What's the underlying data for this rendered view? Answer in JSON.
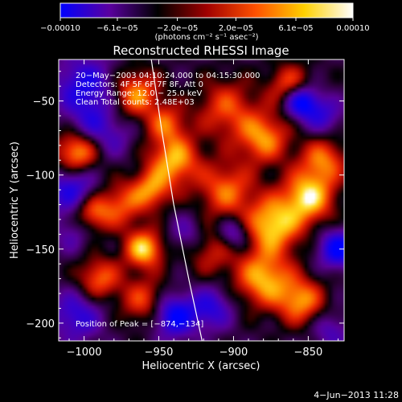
{
  "chart_data": {
    "type": "heatmap",
    "title": "Reconstructed RHESSI Image",
    "xlabel": "Heliocentric X (arcsec)",
    "ylabel": "Heliocentric Y (arcsec)",
    "xlim": [
      -1017,
      -826
    ],
    "ylim": [
      -212,
      -22
    ],
    "x_ticks": [
      -1000,
      -950,
      -900,
      -850
    ],
    "y_ticks": [
      -50,
      -100,
      -150,
      -200
    ],
    "x_tick_labels": [
      "−1000",
      "−950",
      "−900",
      "−850"
    ],
    "y_tick_labels": [
      "−50",
      "−100",
      "−150",
      "−200"
    ],
    "colorbar": {
      "ticks": [
        -0.0001,
        -6.1e-05,
        -2e-05,
        2e-05,
        6.1e-05,
        0.0001
      ],
      "tick_labels": [
        "−0.00010",
        "−6.1e−05",
        "−2.0e−05",
        "2.0e−05",
        "6.1e−05",
        "0.00010"
      ],
      "units": "(photons cm⁻² s⁻¹ asec⁻²)",
      "colors": [
        "#0000ff",
        "#5a00a0",
        "#000000",
        "#a00000",
        "#ff5000",
        "#ffd000",
        "#ffffff"
      ]
    },
    "annotations": [
      "20−May−2003 04:10:24.000 to 04:15:30.000",
      "Detectors: 4F 5F 6F 7F 8F, Att 0",
      "Energy Range: 12.0 − 25.0 keV",
      "Clean     Total counts: 2.48E+03"
    ],
    "peak_label": "Position of Peak = [−874,−134]",
    "peak_position": [
      -874,
      -134
    ],
    "limb": [
      [
        -955,
        -22
      ],
      [
        -948,
        -70
      ],
      [
        -940,
        -120
      ],
      [
        -930,
        -170
      ],
      [
        -921,
        -212
      ]
    ],
    "blobs": [
      {
        "x": -1005,
        "y": -85,
        "v": 0.9,
        "r": 10
      },
      {
        "x": -965,
        "y": -45,
        "v": 0.8,
        "r": 11
      },
      {
        "x": -940,
        "y": -90,
        "v": 0.9,
        "r": 12
      },
      {
        "x": -945,
        "y": -65,
        "v": 0.6,
        "r": 9
      },
      {
        "x": -905,
        "y": -55,
        "v": 0.6,
        "r": 14
      },
      {
        "x": -880,
        "y": -75,
        "v": 0.8,
        "r": 12
      },
      {
        "x": -862,
        "y": -40,
        "v": 0.7,
        "r": 10
      },
      {
        "x": -840,
        "y": -90,
        "v": 0.7,
        "r": 11
      },
      {
        "x": -850,
        "y": -115,
        "v": 1.0,
        "r": 12
      },
      {
        "x": -874,
        "y": -134,
        "v": 1.0,
        "r": 13
      },
      {
        "x": -880,
        "y": -170,
        "v": 0.9,
        "r": 13
      },
      {
        "x": -855,
        "y": -185,
        "v": 0.8,
        "r": 11
      },
      {
        "x": -905,
        "y": -110,
        "v": 0.7,
        "r": 13
      },
      {
        "x": -915,
        "y": -150,
        "v": 0.5,
        "r": 12
      },
      {
        "x": -960,
        "y": -150,
        "v": 1.0,
        "r": 9
      },
      {
        "x": -975,
        "y": -120,
        "v": 0.6,
        "r": 11
      },
      {
        "x": -955,
        "y": -110,
        "v": 0.7,
        "r": 9
      },
      {
        "x": -995,
        "y": -125,
        "v": 0.7,
        "r": 9
      },
      {
        "x": -990,
        "y": -170,
        "v": 0.7,
        "r": 10
      },
      {
        "x": -960,
        "y": -185,
        "v": 0.6,
        "r": 11
      },
      {
        "x": -1008,
        "y": -140,
        "v": -0.3,
        "r": 9
      },
      {
        "x": -1000,
        "y": -40,
        "v": -0.7,
        "r": 14
      },
      {
        "x": -995,
        "y": -65,
        "v": -0.4,
        "r": 10
      },
      {
        "x": -1008,
        "y": -110,
        "v": -0.7,
        "r": 12
      },
      {
        "x": -1005,
        "y": -195,
        "v": -0.6,
        "r": 12
      },
      {
        "x": -980,
        "y": -75,
        "v": -0.3,
        "r": 10
      },
      {
        "x": -930,
        "y": -140,
        "v": -0.4,
        "r": 9
      },
      {
        "x": -900,
        "y": -140,
        "v": -0.6,
        "r": 8
      },
      {
        "x": -940,
        "y": -195,
        "v": -0.9,
        "r": 10
      },
      {
        "x": -915,
        "y": -190,
        "v": -0.6,
        "r": 10
      },
      {
        "x": -855,
        "y": -50,
        "v": -1.1,
        "r": 8
      },
      {
        "x": -840,
        "y": -60,
        "v": -0.5,
        "r": 9
      },
      {
        "x": -830,
        "y": -150,
        "v": -0.9,
        "r": 9
      },
      {
        "x": -835,
        "y": -205,
        "v": -0.4,
        "r": 9
      }
    ]
  },
  "footer": {
    "timestamp": "4−Jun−2013 11:28"
  }
}
